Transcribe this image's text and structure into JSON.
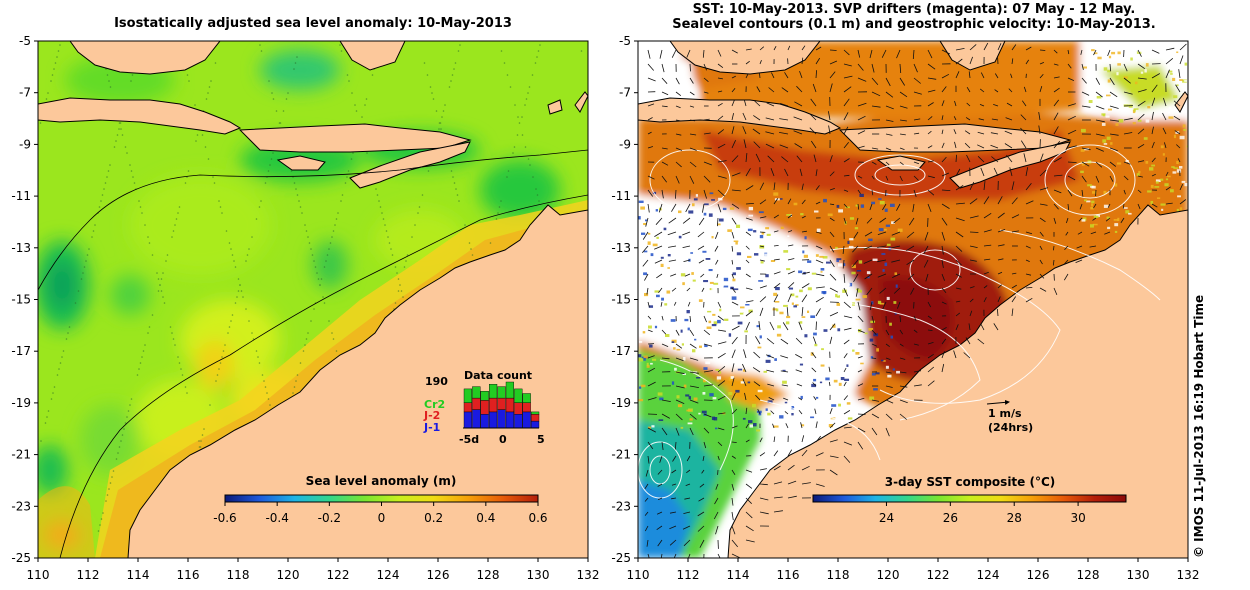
{
  "left_panel": {
    "title": "Isostatically adjusted sea level anomaly: 10-May-2013",
    "colorbar": {
      "label": "Sea level anomaly (m)",
      "ticks": [
        "-0.6",
        "-0.4",
        "-0.2",
        "0",
        "0.2",
        "0.4",
        "0.6"
      ],
      "colors": [
        "#0a1a7a",
        "#1e5adc",
        "#1eb4e6",
        "#32d78c",
        "#78e632",
        "#c8f01e",
        "#f0dc14",
        "#f5a00a",
        "#e65a0a",
        "#b41e0a"
      ]
    },
    "data_count": {
      "title": "Data count",
      "max_label": "190",
      "series": [
        {
          "name": "Cr2",
          "color": "#22cc22"
        },
        {
          "name": "J-2",
          "color": "#e02020"
        },
        {
          "name": "J-1",
          "color": "#1a1ae0"
        }
      ],
      "x_ticks": [
        "-5d",
        "0",
        "5"
      ],
      "bars": [
        {
          "j1": 0.35,
          "j2": 0.2,
          "cr2": 0.3
        },
        {
          "j1": 0.4,
          "j2": 0.25,
          "cr2": 0.25
        },
        {
          "j1": 0.3,
          "j2": 0.3,
          "cr2": 0.2
        },
        {
          "j1": 0.35,
          "j2": 0.3,
          "cr2": 0.3
        },
        {
          "j1": 0.4,
          "j2": 0.25,
          "cr2": 0.25
        },
        {
          "j1": 0.35,
          "j2": 0.3,
          "cr2": 0.35
        },
        {
          "j1": 0.3,
          "j2": 0.25,
          "cr2": 0.3
        },
        {
          "j1": 0.35,
          "j2": 0.2,
          "cr2": 0.2
        },
        {
          "j1": 0.15,
          "j2": 0.15,
          "cr2": 0.05
        }
      ]
    }
  },
  "right_panel": {
    "title_line1": "SST: 10-May-2013. SVP drifters (magenta): 07 May - 12 May.",
    "title_line2": "Sealevel contours (0.1 m) and geostrophic velocity: 10-May-2013.",
    "scale_arrow": {
      "line1": "1 m/s",
      "line2": "(24hrs)"
    },
    "colorbar": {
      "label": "3-day SST composite (°C)",
      "ticks": [
        "24",
        "26",
        "28",
        "30"
      ],
      "colors": [
        "#0a1a7a",
        "#1e5adc",
        "#1eb4e6",
        "#32d78c",
        "#78e632",
        "#c8f01e",
        "#f0dc14",
        "#f5a00a",
        "#e65a0a",
        "#b41e0a",
        "#8c0a0a"
      ]
    }
  },
  "axes": {
    "lat_ticks": [
      "-5",
      "-7",
      "-9",
      "-11",
      "-13",
      "-15",
      "-17",
      "-19",
      "-21",
      "-23",
      "-25"
    ],
    "lon_ticks": [
      "110",
      "112",
      "114",
      "116",
      "118",
      "120",
      "122",
      "124",
      "126",
      "128",
      "130",
      "132"
    ]
  },
  "credit": "© IMOS 11-Jul-2013 16:19 Hobart Time",
  "colors": {
    "land": "#fcc89b",
    "coast": "#000000",
    "sla_base": "#9be61e",
    "sst_base": "#e0780a"
  }
}
